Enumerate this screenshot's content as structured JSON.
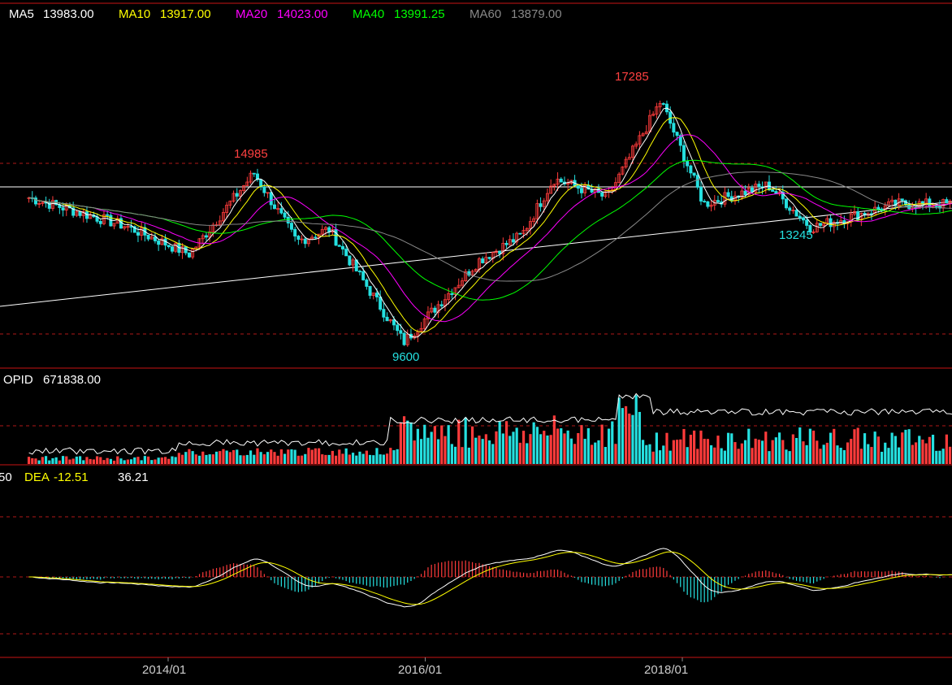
{
  "colors": {
    "background": "#000000",
    "up": "#ff3b3b",
    "down": "#25e0e0",
    "ma5": "#ffffff",
    "ma10": "#ffff00",
    "ma20": "#ff00ff",
    "ma40": "#00ff00",
    "ma60": "#888888",
    "grid": "#b01818",
    "trendline": "#ffffff"
  },
  "chart_data": [
    {
      "type": "candlestick",
      "legend": [
        {
          "label": "MA5",
          "value": "13983.00",
          "color": "#ffffff"
        },
        {
          "label": "MA10",
          "value": "13917.00",
          "color": "#ffff00"
        },
        {
          "label": "MA20",
          "value": "14023.00",
          "color": "#ff00ff"
        },
        {
          "label": "MA40",
          "value": "13991.25",
          "color": "#00ff00"
        },
        {
          "label": "MA60",
          "value": "13879.00",
          "color": "#888888"
        }
      ],
      "annotations": [
        {
          "text": "14985",
          "x": "2014/09",
          "y": 14985,
          "kind": "high"
        },
        {
          "text": "9600",
          "x": "2015/11",
          "y": 9600,
          "kind": "low"
        },
        {
          "text": "17285",
          "x": "2017/11",
          "y": 17285,
          "kind": "high"
        },
        {
          "text": "13245",
          "x": "2019/01",
          "y": 13245,
          "kind": "low"
        }
      ],
      "x_ticks": [
        "2014/01",
        "2016/01",
        "2018/01"
      ],
      "key_points": [
        {
          "x": "2012/12",
          "y": 14200
        },
        {
          "x": "2013/09",
          "y": 13300
        },
        {
          "x": "2014/03",
          "y": 12400
        },
        {
          "x": "2014/09",
          "y": 14985
        },
        {
          "x": "2015/01",
          "y": 12800
        },
        {
          "x": "2015/04",
          "y": 13200
        },
        {
          "x": "2015/11",
          "y": 9600
        },
        {
          "x": "2016/06",
          "y": 12200
        },
        {
          "x": "2016/10",
          "y": 13000
        },
        {
          "x": "2017/01",
          "y": 14800
        },
        {
          "x": "2017/06",
          "y": 14200
        },
        {
          "x": "2017/11",
          "y": 17285
        },
        {
          "x": "2018/03",
          "y": 14000
        },
        {
          "x": "2018/09",
          "y": 14600
        },
        {
          "x": "2019/01",
          "y": 13245
        },
        {
          "x": "2019/09",
          "y": 14000
        },
        {
          "x": "2020/03",
          "y": 13983
        }
      ]
    },
    {
      "type": "bar",
      "title": "OPID",
      "value": "671838.00",
      "description_key": "open interest"
    },
    {
      "type": "macd",
      "legend": [
        {
          "label": "DEA",
          "value": "-12.51",
          "color": "#ffff00"
        },
        {
          "label": "",
          "value": "36.21",
          "color": "#ffffff"
        }
      ]
    }
  ],
  "labels": {
    "opid_label": "OPID",
    "opid_value": "671838.00",
    "macd_cut": "50",
    "dea_label": "DEA",
    "dea_value": "-12.51",
    "macd_value": "36.21"
  }
}
